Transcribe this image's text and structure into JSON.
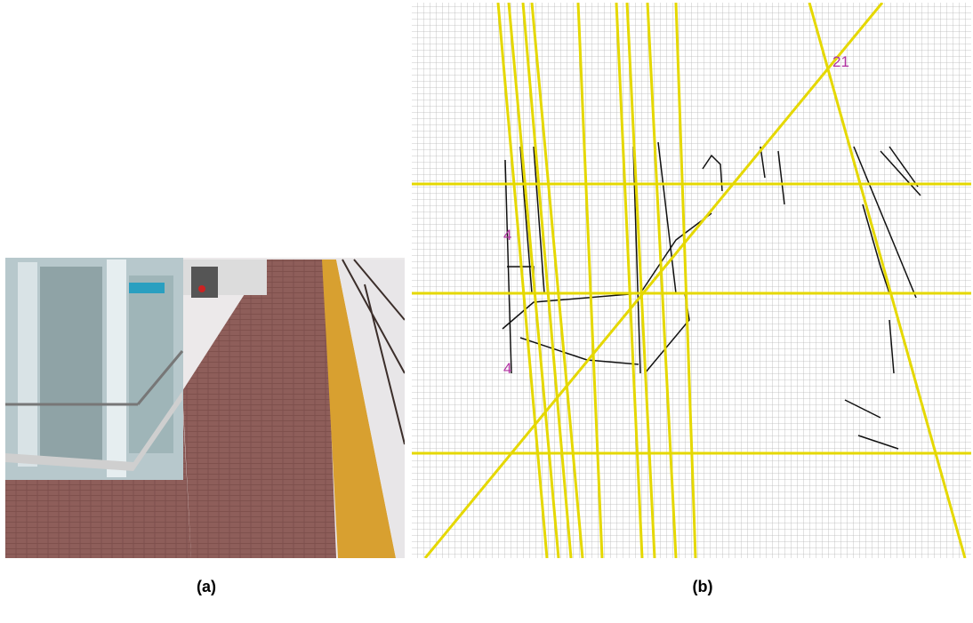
{
  "figure": {
    "panels": [
      {
        "label": "(a)"
      },
      {
        "label": "(b)",
        "annotations": [
          "21",
          "4",
          "4"
        ]
      }
    ]
  }
}
